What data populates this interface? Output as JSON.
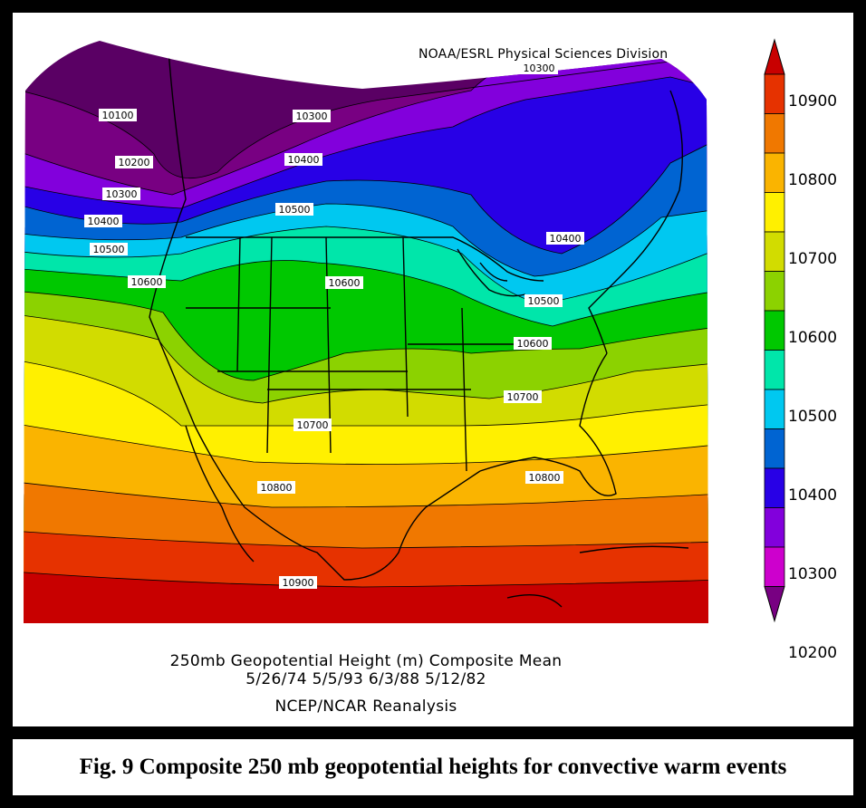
{
  "credit": "NOAA/ESRL Physical Sciences Division",
  "caption_lines": [
    "250mb Geopotential Height (m) Composite Mean",
    "5/26/74 5/5/93 6/3/88 5/12/82",
    "NCEP/NCAR Reanalysis"
  ],
  "figure_caption": "Fig. 9 Composite 250 mb geopotential heights for convective warm events",
  "legend": {
    "labels": [
      "10900",
      "10800",
      "10700",
      "10600",
      "10500",
      "10400",
      "10300",
      "10200"
    ],
    "colors": [
      "#c80000",
      "#e63200",
      "#f07800",
      "#fab400",
      "#fff000",
      "#d2dc00",
      "#8cd200",
      "#00c800",
      "#00e6aa",
      "#00c8f0",
      "#0064d2",
      "#2800e6",
      "#8200dc",
      "#cd00cd",
      "#780082"
    ]
  },
  "contour_labels": [
    {
      "text": "10100"
    },
    {
      "text": "10200"
    },
    {
      "text": "10300"
    },
    {
      "text": "10400"
    },
    {
      "text": "10500"
    },
    {
      "text": "10600"
    },
    {
      "text": "10300"
    },
    {
      "text": "10400"
    },
    {
      "text": "10500"
    },
    {
      "text": "10600"
    },
    {
      "text": "10300"
    },
    {
      "text": "10400"
    },
    {
      "text": "10500"
    },
    {
      "text": "10600"
    },
    {
      "text": "10700"
    },
    {
      "text": "10700"
    },
    {
      "text": "10800"
    },
    {
      "text": "10800"
    },
    {
      "text": "10900"
    }
  ]
}
